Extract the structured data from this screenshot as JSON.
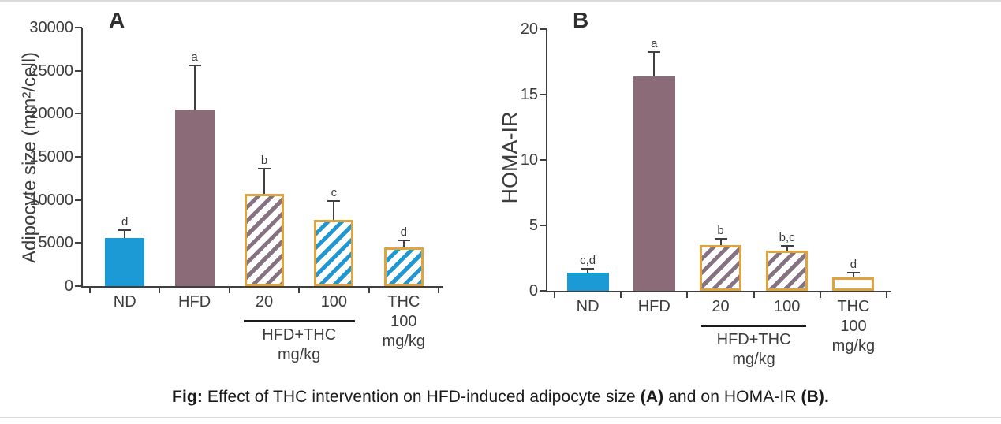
{
  "page": {
    "background": "#ffffff",
    "border_color": "#dadada"
  },
  "colors": {
    "blue": "#1b9ad6",
    "mauve": "#8a6b77",
    "mauve_hatch": "#857383",
    "blue_hatch": "#1f97d3",
    "orange": "#dfa43f",
    "axis": "#3f3f3f"
  },
  "caption": {
    "fig_label": "Fig:",
    "part1": "Effect of THC intervention on HFD-induced adipocyte size",
    "bold_a": "(A)",
    "part2": "and on HOMA-IR",
    "bold_b": "(B)."
  },
  "chart_data": [
    {
      "type": "bar",
      "panel_label": "A",
      "ylabel": "Adipocyte size (mm²/cell)",
      "xlabel": "",
      "ylim": [
        0,
        30000
      ],
      "yticks": [
        0,
        5000,
        10000,
        15000,
        20000,
        25000,
        30000
      ],
      "grid": false,
      "legend": "none",
      "bars": [
        {
          "category_lines": [
            "ND"
          ],
          "value": 5600,
          "error_top": 6400,
          "sig_letter": "d",
          "fill": "blue",
          "hatch": null
        },
        {
          "category_lines": [
            "HFD"
          ],
          "value": 20500,
          "error_top": 25500,
          "sig_letter": "a",
          "fill": "mauve",
          "hatch": null
        },
        {
          "category_lines": [
            "20"
          ],
          "value": 10700,
          "error_top": 13500,
          "sig_letter": "b",
          "fill": "white",
          "hatch": "mauve_hatch"
        },
        {
          "category_lines": [
            "100"
          ],
          "value": 7700,
          "error_top": 9800,
          "sig_letter": "c",
          "fill": "white",
          "hatch": "blue_hatch_no"
        },
        {
          "category_lines": [
            "THC",
            "100 mg/kg"
          ],
          "value": 4500,
          "error_top": 5200,
          "sig_letter": "d",
          "fill": "white",
          "hatch": "blue_hatch"
        }
      ],
      "group_annotation": {
        "label_line1": "HFD+THC",
        "label_line2": "mg/kg",
        "bar_indices": [
          2,
          3
        ]
      }
    },
    {
      "type": "bar",
      "panel_label": "B",
      "ylabel": "HOMA-IR",
      "xlabel": "",
      "ylim": [
        0,
        20
      ],
      "yticks": [
        0,
        5,
        10,
        15,
        20
      ],
      "grid": false,
      "legend": "none",
      "bars": [
        {
          "category_lines": [
            "ND"
          ],
          "value": 1.4,
          "error_top": 1.6,
          "sig_letter": "c,d",
          "fill": "blue",
          "hatch": null
        },
        {
          "category_lines": [
            "HFD"
          ],
          "value": 16.4,
          "error_top": 18.2,
          "sig_letter": "a",
          "fill": "mauve",
          "hatch": null
        },
        {
          "category_lines": [
            "20"
          ],
          "value": 3.5,
          "error_top": 3.9,
          "sig_letter": "b",
          "fill": "white",
          "hatch": "mauve_hatch"
        },
        {
          "category_lines": [
            "100"
          ],
          "value": 3.1,
          "error_top": 3.4,
          "sig_letter": "b,c",
          "fill": "white",
          "hatch": "mauve_hatch2"
        },
        {
          "category_lines": [
            "THC",
            "100 mg/kg"
          ],
          "value": 1.0,
          "error_top": 1.3,
          "sig_letter": "d",
          "fill": "white",
          "hatch": null
        }
      ],
      "group_annotation": {
        "label_line1": "HFD+THC",
        "label_line2": "mg/kg",
        "bar_indices": [
          2,
          3
        ]
      }
    }
  ]
}
